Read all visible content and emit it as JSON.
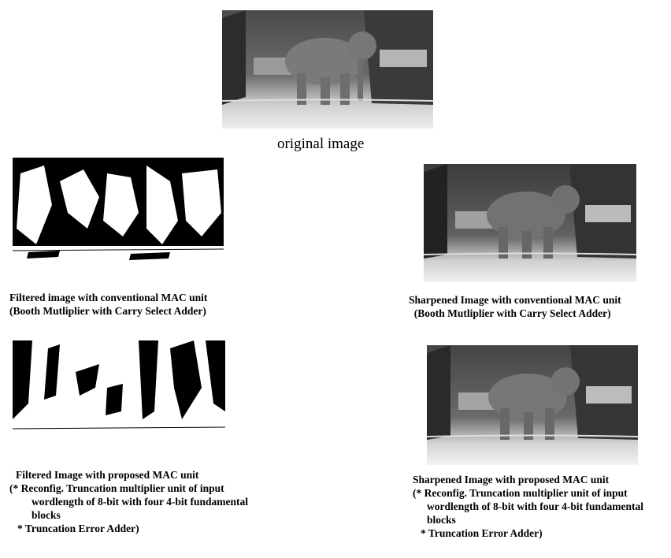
{
  "original": {
    "caption": "original image"
  },
  "filtered_conventional": {
    "caption_lines": [
      "Filtered image with conventional MAC unit",
      "(Booth Mutliplier with Carry Select Adder)"
    ]
  },
  "sharpened_conventional": {
    "caption_lines": [
      "Sharpened Image with conventional MAC unit",
      "  (Booth Mutliplier with Carry Select Adder)"
    ]
  },
  "filtered_proposed": {
    "caption_lines": [
      "Filtered Image with proposed MAC unit",
      "(* Reconfig. Truncation multiplier unit of input",
      "wordlength of 8-bit with four 4-bit fundamental",
      "blocks",
      "* Truncation Error Adder)"
    ]
  },
  "sharpened_proposed": {
    "caption_lines": [
      "Sharpened Image with proposed MAC unit",
      "(* Reconfig. Truncation multiplier unit of input",
      "wordlength of 8-bit with four 4-bit fundamental",
      "blocks",
      "* Truncation Error Adder)"
    ]
  },
  "colors": {
    "background": "#ffffff",
    "text": "#000000",
    "photo_dark": "#3a3a3a",
    "photo_light": "#d8d8d8"
  }
}
